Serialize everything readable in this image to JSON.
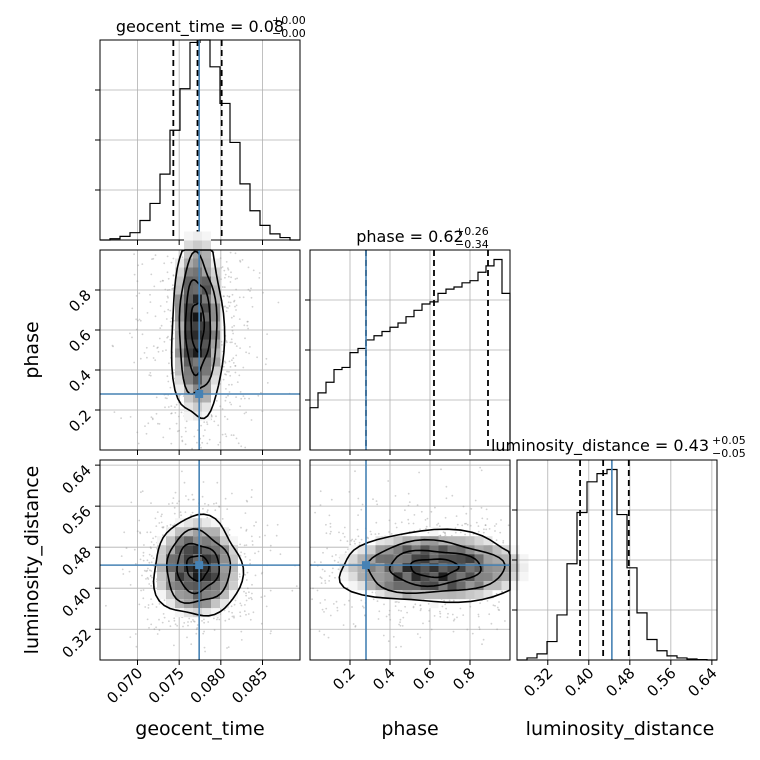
{
  "colors": {
    "truth": "#4682b4",
    "line": "#000000",
    "grid": "#b0b0b0"
  },
  "parameters": [
    {
      "key": "geocent_time",
      "label": "geocent_time",
      "truth": 0.0774
    },
    {
      "key": "phase",
      "label": "phase",
      "truth": 0.28
    },
    {
      "key": "luminosity_distance",
      "label": "luminosity_distance",
      "truth": 0.445
    }
  ],
  "titles": [
    {
      "main": "geocent_time = 0.08",
      "sup": "+0.00",
      "sub": "−0.00"
    },
    {
      "main": "phase = 0.62",
      "sup": "+0.26",
      "sub": "−0.34"
    },
    {
      "main": "luminosity_distance = 0.43",
      "sup": "+0.05",
      "sub": "−0.05"
    }
  ],
  "chart_data": [
    {
      "type": "histogram",
      "panel": "geocent_time marginal",
      "title": "geocent_time = 0.08 (+0.00 / −0.00)",
      "xlim": [
        0.0655,
        0.0895
      ],
      "bin_edges": [
        0.0655,
        0.0667,
        0.0679,
        0.0691,
        0.0703,
        0.0715,
        0.0727,
        0.0739,
        0.0751,
        0.0763,
        0.0775,
        0.0787,
        0.0799,
        0.0811,
        0.0823,
        0.0835,
        0.0847,
        0.0859,
        0.0871,
        0.0883,
        0.0895
      ],
      "counts": [
        0,
        0.005,
        0.015,
        0.03,
        0.08,
        0.15,
        0.27,
        0.45,
        0.62,
        0.81,
        0.82,
        0.71,
        0.56,
        0.4,
        0.23,
        0.12,
        0.06,
        0.025,
        0.01,
        0
      ],
      "quantiles": [
        0.0743,
        0.0772,
        0.0801
      ],
      "truth": 0.0774,
      "xticks": [
        "0.070",
        "0.075",
        "0.080",
        "0.085"
      ],
      "xtick_values": [
        0.07,
        0.075,
        0.08,
        0.085
      ]
    },
    {
      "type": "histogram",
      "panel": "phase marginal",
      "title": "phase = 0.62 (+0.26 / −0.34)",
      "xlim": [
        0.0,
        1.0
      ],
      "bin_edges": [
        0.0,
        0.04,
        0.08,
        0.12,
        0.16,
        0.2,
        0.24,
        0.28,
        0.32,
        0.36,
        0.4,
        0.44,
        0.48,
        0.52,
        0.56,
        0.6,
        0.64,
        0.68,
        0.72,
        0.76,
        0.8,
        0.84,
        0.88,
        0.92,
        0.96,
        1.0
      ],
      "counts": [
        0.2,
        0.27,
        0.32,
        0.38,
        0.39,
        0.46,
        0.48,
        0.52,
        0.54,
        0.56,
        0.58,
        0.6,
        0.63,
        0.66,
        0.69,
        0.7,
        0.74,
        0.76,
        0.77,
        0.79,
        0.8,
        0.84,
        0.87,
        0.9,
        0.74
      ],
      "quantiles": [
        0.28,
        0.62,
        0.89
      ],
      "truth": 0.28,
      "xticks": [
        "0.2",
        "0.4",
        "0.6",
        "0.8"
      ],
      "xtick_values": [
        0.2,
        0.4,
        0.6,
        0.8
      ]
    },
    {
      "type": "histogram",
      "panel": "luminosity_distance marginal",
      "title": "luminosity_distance = 0.43 (+0.05 / −0.05)",
      "xlim": [
        0.26,
        0.65
      ],
      "bin_edges": [
        0.26,
        0.2795,
        0.299,
        0.3185,
        0.338,
        0.3575,
        0.377,
        0.3965,
        0.416,
        0.4355,
        0.455,
        0.4745,
        0.494,
        0.5135,
        0.533,
        0.5525,
        0.572,
        0.5915,
        0.611,
        0.6305,
        0.65
      ],
      "counts": [
        0,
        0.01,
        0.03,
        0.09,
        0.22,
        0.47,
        0.72,
        0.87,
        0.91,
        0.93,
        0.71,
        0.45,
        0.23,
        0.1,
        0.045,
        0.02,
        0.01,
        0.005,
        0.002,
        0
      ],
      "quantiles": [
        0.383,
        0.428,
        0.478
      ],
      "truth": 0.445,
      "xticks": [
        "0.32",
        "0.40",
        "0.48",
        "0.56",
        "0.64"
      ],
      "xtick_values": [
        0.32,
        0.4,
        0.48,
        0.56,
        0.64
      ]
    },
    {
      "type": "scatter",
      "panel": "phase vs geocent_time (2D density with contours)",
      "xlim": [
        0.0655,
        0.0895
      ],
      "ylim": [
        0.0,
        1.0
      ],
      "yticks": [
        "0.2",
        "0.4",
        "0.6",
        "0.8"
      ],
      "ytick_values": [
        0.2,
        0.4,
        0.6,
        0.8
      ],
      "truth": [
        0.0774,
        0.28
      ],
      "center": [
        0.0772,
        0.62
      ],
      "spread_data_units": [
        0.0028,
        0.34
      ]
    },
    {
      "type": "scatter",
      "panel": "luminosity_distance vs geocent_time (2D density with contours)",
      "xlim": [
        0.0655,
        0.0895
      ],
      "ylim": [
        0.26,
        0.65
      ],
      "yticks": [
        "0.32",
        "0.40",
        "0.48",
        "0.56",
        "0.64"
      ],
      "ytick_values": [
        0.32,
        0.4,
        0.48,
        0.56,
        0.64
      ],
      "truth": [
        0.0774,
        0.445
      ],
      "center": [
        0.0772,
        0.44
      ],
      "spread_data_units": [
        0.0028,
        0.05
      ]
    },
    {
      "type": "scatter",
      "panel": "luminosity_distance vs phase (2D density with contours)",
      "xlim": [
        0.0,
        1.0
      ],
      "ylim": [
        0.26,
        0.65
      ],
      "truth": [
        0.28,
        0.445
      ],
      "center": [
        0.62,
        0.44
      ],
      "spread_data_units": [
        0.3,
        0.05
      ]
    }
  ]
}
